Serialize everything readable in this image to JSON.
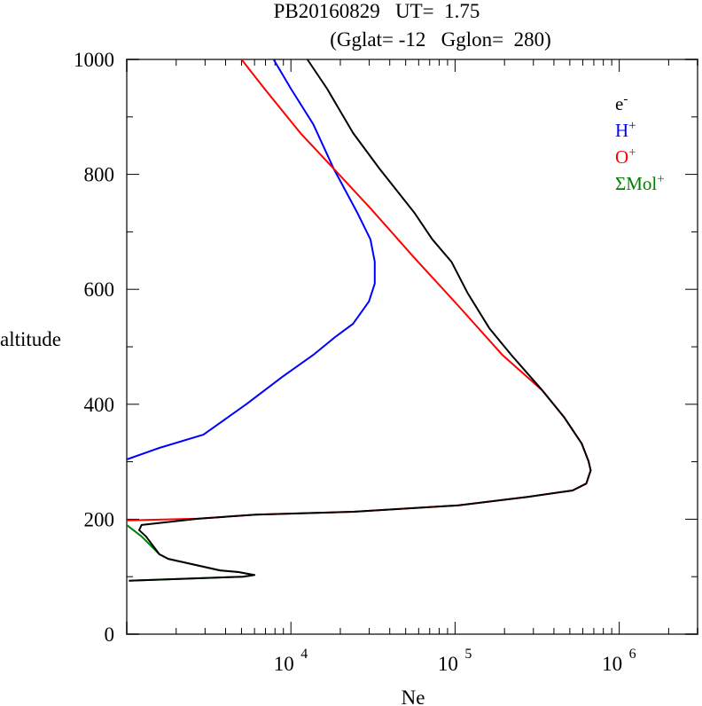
{
  "chart_data": {
    "type": "line",
    "title_line1": "PB20160829   UT=  1.75",
    "title_line2": "(Gglat= -12   Gglon=  280)",
    "xlabel": "Ne",
    "ylabel": "altitude",
    "xscale": "log",
    "xlim": [
      1000,
      3000000
    ],
    "ylim": [
      0,
      1000
    ],
    "yticks": [
      0,
      200,
      400,
      600,
      800,
      1000
    ],
    "xticks": [
      {
        "value": 10000,
        "base": "10",
        "exp": "4"
      },
      {
        "value": 100000,
        "base": "10",
        "exp": "5"
      },
      {
        "value": 1000000,
        "base": "10",
        "exp": "6"
      }
    ],
    "legend_position": "top-right",
    "series": [
      {
        "name": "e-",
        "label_base": "e",
        "label_sup": "-",
        "color": "#000000",
        "points": [
          [
            12600,
            1000
          ],
          [
            16600,
            949
          ],
          [
            23900,
            872
          ],
          [
            34600,
            810
          ],
          [
            56600,
            733
          ],
          [
            72600,
            687
          ],
          [
            95000,
            648
          ],
          [
            119000,
            594
          ],
          [
            162000,
            532
          ],
          [
            220000,
            486
          ],
          [
            340000,
            424
          ],
          [
            460000,
            378
          ],
          [
            590000,
            332
          ],
          [
            650000,
            301
          ],
          [
            670000,
            285
          ],
          [
            630000,
            262
          ],
          [
            520000,
            250
          ],
          [
            280000,
            239
          ],
          [
            105000,
            224
          ],
          [
            24000,
            213
          ],
          [
            6100,
            208
          ],
          [
            2750,
            201
          ],
          [
            1230,
            190
          ],
          [
            1190,
            181
          ],
          [
            1310,
            170
          ],
          [
            1580,
            139
          ],
          [
            1790,
            131
          ],
          [
            3700,
            111
          ],
          [
            4800,
            108
          ],
          [
            6000,
            103
          ],
          [
            5100,
            100
          ],
          [
            1030,
            93
          ]
        ]
      },
      {
        "name": "H+",
        "label_base": "H",
        "label_sup": "+",
        "color": "#0000ff",
        "points": [
          [
            7850,
            1000
          ],
          [
            10000,
            949
          ],
          [
            13700,
            887
          ],
          [
            18200,
            810
          ],
          [
            25400,
            733
          ],
          [
            30500,
            687
          ],
          [
            32400,
            648
          ],
          [
            32400,
            610
          ],
          [
            29900,
            579
          ],
          [
            23900,
            540
          ],
          [
            18600,
            517
          ],
          [
            13700,
            486
          ],
          [
            8900,
            448
          ],
          [
            5400,
            401
          ],
          [
            2930,
            347
          ],
          [
            1580,
            324
          ],
          [
            1000,
            304
          ]
        ]
      },
      {
        "name": "O+",
        "label_base": "O",
        "label_sup": "+",
        "color": "#ff0000",
        "points": [
          [
            5000,
            1000
          ],
          [
            6900,
            949
          ],
          [
            11400,
            872
          ],
          [
            18200,
            810
          ],
          [
            30500,
            741
          ],
          [
            56000,
            656
          ],
          [
            105000,
            571
          ],
          [
            194000,
            486
          ],
          [
            340000,
            424
          ],
          [
            460000,
            378
          ],
          [
            590000,
            332
          ],
          [
            650000,
            301
          ],
          [
            670000,
            285
          ],
          [
            630000,
            262
          ],
          [
            520000,
            250
          ],
          [
            280000,
            239
          ],
          [
            105000,
            224
          ],
          [
            24000,
            213
          ],
          [
            6100,
            208
          ],
          [
            2750,
            201
          ],
          [
            1000,
            198
          ]
        ]
      },
      {
        "name": "ΣMol+",
        "label_base": "ΣMol",
        "label_sup": "+",
        "color": "#008000",
        "points": [
          [
            1000,
            190
          ],
          [
            1230,
            170
          ],
          [
            1580,
            139
          ],
          [
            1790,
            131
          ],
          [
            3700,
            111
          ],
          [
            4800,
            108
          ],
          [
            6000,
            103
          ],
          [
            5100,
            100
          ],
          [
            1030,
            93
          ]
        ]
      }
    ]
  }
}
